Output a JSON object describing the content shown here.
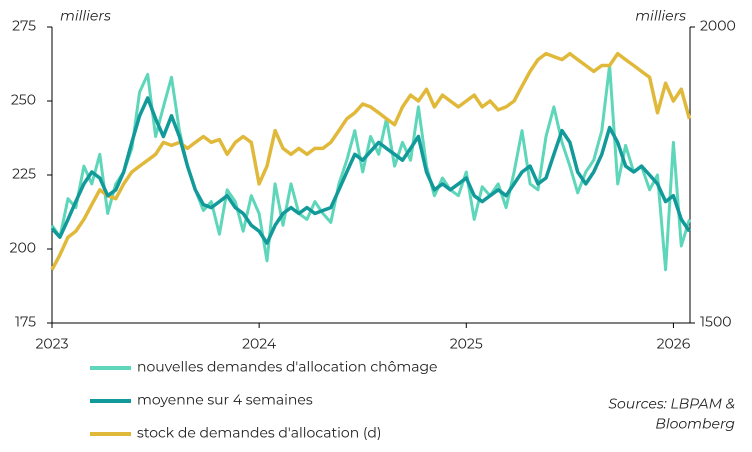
{
  "chart_data": {
    "type": "line",
    "ylabel": "milliers",
    "y2label": "milliers",
    "source": [
      "Sources: LBPAM &",
      "Bloomberg"
    ],
    "x": [
      2023,
      2023.038,
      2023.077,
      2023.115,
      2023.154,
      2023.192,
      2023.231,
      2023.269,
      2023.308,
      2023.346,
      2023.385,
      2023.423,
      2023.462,
      2023.5,
      2023.538,
      2023.577,
      2023.615,
      2023.654,
      2023.692,
      2023.731,
      2023.769,
      2023.808,
      2023.846,
      2023.885,
      2023.923,
      2023.962,
      2024,
      2024.038,
      2024.077,
      2024.115,
      2024.154,
      2024.192,
      2024.231,
      2024.269,
      2024.308,
      2024.346,
      2024.385,
      2024.423,
      2024.462,
      2024.5,
      2024.538,
      2024.577,
      2024.615,
      2024.654,
      2024.692,
      2024.731,
      2024.769,
      2024.808,
      2024.846,
      2024.885,
      2024.923,
      2024.962,
      2025,
      2025.038,
      2025.077,
      2025.115,
      2025.154,
      2025.192,
      2025.231,
      2025.269,
      2025.308,
      2025.346,
      2025.385,
      2025.423,
      2025.462,
      2025.5,
      2025.538,
      2025.577,
      2025.615,
      2025.654,
      2025.692,
      2025.731,
      2025.769,
      2025.808,
      2025.846,
      2025.885,
      2025.923,
      2025.962,
      2026,
      2026.038,
      2026.077
    ],
    "xlim": [
      2023,
      2026.08
    ],
    "xticks": [
      2023,
      2024,
      2025,
      2026
    ],
    "ylim": [
      175,
      275
    ],
    "yticks": [
      175,
      200,
      225,
      250,
      275
    ],
    "y2lim": [
      1500,
      2000
    ],
    "y2ticks": [
      1500,
      2000
    ],
    "series": [
      {
        "name": "nouvelles demandes d'allocation chômage",
        "color": "#5ed6b9",
        "values": [
          208,
          204,
          217,
          214,
          228,
          222,
          232,
          212,
          222,
          226,
          234,
          253,
          259,
          238,
          248,
          258,
          240,
          228,
          220,
          213,
          216,
          205,
          220,
          216,
          206,
          218,
          212,
          196,
          222,
          208,
          222,
          212,
          210,
          216,
          212,
          209,
          222,
          230,
          240,
          226,
          238,
          232,
          244,
          228,
          236,
          230,
          248,
          228,
          218,
          224,
          220,
          218,
          226,
          210,
          221,
          218,
          222,
          214,
          226,
          240,
          222,
          220,
          238,
          248,
          236,
          228,
          219,
          226,
          230,
          240,
          262,
          222,
          235,
          226,
          228,
          220,
          225,
          193,
          236,
          201,
          210
        ]
      },
      {
        "name": "moyenne sur 4 semaines",
        "color": "#12999a",
        "values": [
          207,
          204,
          210,
          216,
          222,
          226,
          224,
          218,
          220,
          226,
          236,
          245,
          251,
          244,
          238,
          245,
          238,
          228,
          220,
          215,
          214,
          216,
          218,
          214,
          212,
          208,
          206,
          202,
          208,
          212,
          214,
          212,
          214,
          212,
          213,
          214,
          220,
          226,
          232,
          230,
          233,
          236,
          234,
          232,
          230,
          234,
          238,
          226,
          220,
          222,
          220,
          222,
          224,
          218,
          216,
          218,
          220,
          218,
          222,
          226,
          228,
          222,
          224,
          232,
          240,
          236,
          226,
          222,
          226,
          232,
          241,
          236,
          228,
          226,
          228,
          225,
          222,
          216,
          218,
          210,
          206
        ]
      },
      {
        "name": "stock de demandes d'allocation (d)",
        "color": "#e1b93a",
        "axis": "y2",
        "values": [
          1590,
          1615,
          1645,
          1655,
          1675,
          1700,
          1725,
          1715,
          1710,
          1735,
          1755,
          1765,
          1775,
          1785,
          1805,
          1800,
          1805,
          1795,
          1805,
          1815,
          1805,
          1810,
          1785,
          1805,
          1815,
          1805,
          1735,
          1765,
          1825,
          1795,
          1785,
          1795,
          1785,
          1795,
          1795,
          1805,
          1825,
          1845,
          1855,
          1870,
          1865,
          1855,
          1845,
          1835,
          1865,
          1885,
          1875,
          1895,
          1865,
          1885,
          1875,
          1865,
          1875,
          1885,
          1865,
          1875,
          1860,
          1865,
          1875,
          1900,
          1925,
          1945,
          1955,
          1950,
          1945,
          1955,
          1945,
          1935,
          1925,
          1935,
          1935,
          1955,
          1945,
          1935,
          1925,
          1915,
          1855,
          1905,
          1875,
          1895,
          1845
        ]
      }
    ]
  }
}
